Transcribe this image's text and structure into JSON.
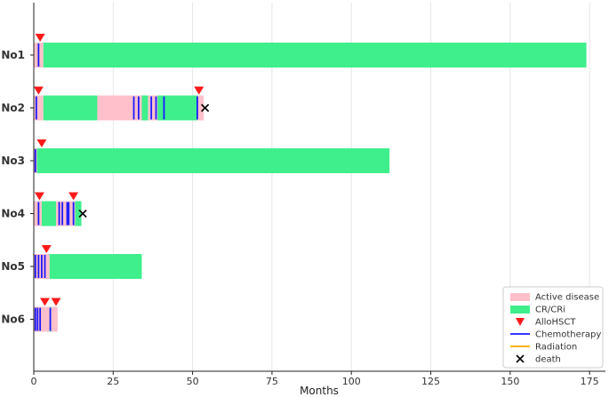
{
  "chart_data": {
    "type": "bar",
    "orientation": "horizontal",
    "xlabel": "Months",
    "xlim": [
      0,
      180
    ],
    "xticks": [
      0,
      25,
      50,
      75,
      100,
      125,
      150,
      175
    ],
    "grid": true,
    "legend_position": "bottom-right",
    "colors": {
      "active": "#ffc0cb",
      "cr": "#3fef8c",
      "allo": "#ff1a1a",
      "chemo": "#1a1aff",
      "radiation": "#ffa500",
      "death": "#000000"
    },
    "legend": [
      {
        "key": "active",
        "label": "Active disease",
        "kind": "patch"
      },
      {
        "key": "cr",
        "label": "CR/CRi",
        "kind": "patch"
      },
      {
        "key": "allo",
        "label": "AlloHSCT",
        "kind": "triangle"
      },
      {
        "key": "chemo",
        "label": "Chemotherapy",
        "kind": "line"
      },
      {
        "key": "radiation",
        "label": "Radiation",
        "kind": "line"
      },
      {
        "key": "death",
        "label": "death",
        "kind": "x"
      }
    ],
    "patients": [
      {
        "label": "No1",
        "segments": [
          {
            "state": "active",
            "start": 0,
            "end": 3
          },
          {
            "state": "cr",
            "start": 3,
            "end": 174
          }
        ],
        "chemo": [
          1.5
        ],
        "allo": [
          2
        ],
        "death": null
      },
      {
        "label": "No2",
        "segments": [
          {
            "state": "active",
            "start": 0,
            "end": 3
          },
          {
            "state": "cr",
            "start": 3,
            "end": 20
          },
          {
            "state": "active",
            "start": 20,
            "end": 34
          },
          {
            "state": "cr",
            "start": 34,
            "end": 36
          },
          {
            "state": "active",
            "start": 36,
            "end": 39
          },
          {
            "state": "cr",
            "start": 39,
            "end": 51.5
          },
          {
            "state": "active",
            "start": 51.5,
            "end": 53.5
          }
        ],
        "chemo": [
          0.8,
          31.5,
          33,
          37,
          38.5,
          41,
          51.5
        ],
        "allo": [
          1.5,
          52
        ],
        "death": 53.5
      },
      {
        "label": "No3",
        "segments": [
          {
            "state": "active",
            "start": 0,
            "end": 1
          },
          {
            "state": "cr",
            "start": 1,
            "end": 112
          }
        ],
        "chemo": [
          0.5
        ],
        "allo": [
          2.5
        ],
        "death": null
      },
      {
        "label": "No4",
        "segments": [
          {
            "state": "active",
            "start": 0,
            "end": 2.5
          },
          {
            "state": "cr",
            "start": 2.5,
            "end": 7
          },
          {
            "state": "active",
            "start": 7,
            "end": 13
          },
          {
            "state": "cr",
            "start": 13,
            "end": 15
          }
        ],
        "chemo": [
          1.5,
          8,
          9,
          10.5,
          11,
          12.5
        ],
        "allo": [
          1.8,
          12.5
        ],
        "death": 15
      },
      {
        "label": "No5",
        "segments": [
          {
            "state": "active",
            "start": 0,
            "end": 5
          },
          {
            "state": "cr",
            "start": 5,
            "end": 34
          }
        ],
        "chemo": [
          0.5,
          1.5,
          2.5,
          3.5
        ],
        "allo": [
          4
        ],
        "death": null
      },
      {
        "label": "No6",
        "segments": [
          {
            "state": "active",
            "start": 0,
            "end": 5
          },
          {
            "state": "cr",
            "start": 5,
            "end": 5.5
          },
          {
            "state": "active",
            "start": 5.5,
            "end": 7.5
          }
        ],
        "chemo": [
          0.5,
          1.2,
          2,
          5.2
        ],
        "allo": [
          3.5,
          7
        ],
        "death": null
      }
    ]
  }
}
